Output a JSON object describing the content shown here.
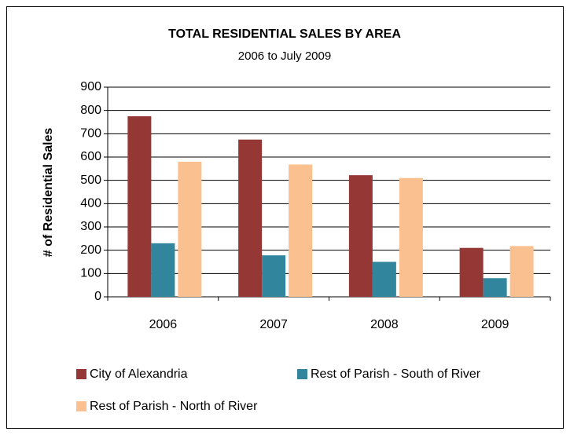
{
  "chart_data": {
    "type": "bar",
    "title": "TOTAL RESIDENTIAL  SALES BY AREA",
    "subtitle": "2006 to July 2009",
    "y_label": "# of Residential  Sales",
    "categories": [
      "2006",
      "2007",
      "2008",
      "2009"
    ],
    "series": [
      {
        "name": "City of Alexandria",
        "color": "#953735",
        "values": [
          775,
          675,
          522,
          210
        ]
      },
      {
        "name": "Rest of Parish - South of River",
        "color": "#31859c",
        "values": [
          230,
          178,
          150,
          80
        ]
      },
      {
        "name": "Rest of Parish - North of River",
        "color": "#fac090",
        "values": [
          580,
          568,
          510,
          218
        ]
      }
    ],
    "ylim": [
      0,
      900
    ],
    "yticks": [
      0,
      100,
      200,
      300,
      400,
      500,
      600,
      700,
      800,
      900
    ],
    "grid": true,
    "legend": "bottom"
  }
}
